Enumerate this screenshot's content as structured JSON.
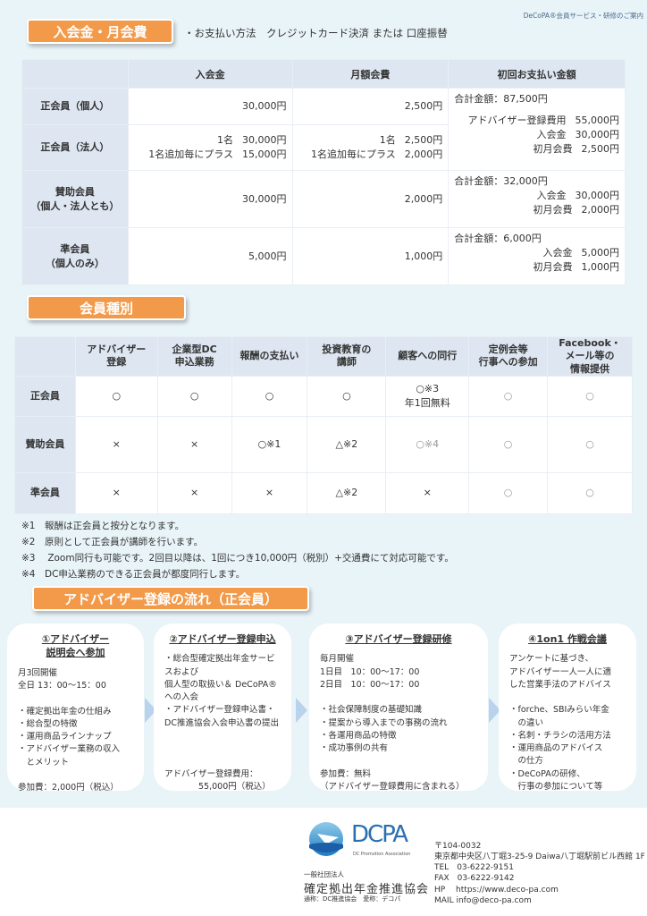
{
  "doc_tag": "DeCoPA®会員サービス・研修のご案内",
  "fees": {
    "title": "入会金・月会費",
    "payment": "・お支払い方法　クレジットカード決済 または 口座振替",
    "headers": [
      "",
      "入会金",
      "月額会費",
      "初回お支払い金額"
    ],
    "rows": [
      {
        "label": "正会員（個人）",
        "join": "30,000円",
        "monthly": "2,500円",
        "total": "合計金額：87,500円"
      },
      {
        "label": "正会員（法人）",
        "join": [
          [
            "1名",
            "30,000円"
          ],
          [
            "1名追加毎にプラス",
            "15,000円"
          ]
        ],
        "monthly": [
          [
            "1名",
            "2,500円"
          ],
          [
            "1名追加毎にプラス",
            "2,000円"
          ]
        ],
        "total_lines": [
          [
            "アドバイザー登録費用",
            "55,000円"
          ],
          [
            "入会金",
            "30,000円"
          ],
          [
            "初月会費",
            "2,500円"
          ]
        ]
      },
      {
        "label": "賛助会員\n（個人・法人とも）",
        "join": "30,000円",
        "monthly": "2,000円",
        "total": "合計金額：32,000円",
        "total_lines": [
          [
            "入会金",
            "30,000円"
          ],
          [
            "初月会費",
            "2,000円"
          ]
        ]
      },
      {
        "label": "準会員\n（個人のみ）",
        "join": "5,000円",
        "monthly": "1,000円",
        "total": "合計金額：6,000円",
        "total_lines": [
          [
            "入会金",
            "5,000円"
          ],
          [
            "初月会費",
            "1,000円"
          ]
        ]
      }
    ]
  },
  "types": {
    "title": "会員種別",
    "headers": [
      "",
      "アドバイザー\n登録",
      "企業型DC\n申込業務",
      "報酬の支払い",
      "投資教育の\n講師",
      "顧客への同行",
      "定例会等\n行事への参加",
      "Facebook・\nメール等の\n情報提供"
    ],
    "rows": [
      {
        "label": "正会員",
        "cells": [
          "○",
          "○",
          "○",
          "○",
          "○※3\n年1回無料",
          "○",
          "○"
        ]
      },
      {
        "label": "賛助会員",
        "cells": [
          "×",
          "×",
          "○※1",
          "△※2",
          "○※4",
          "○",
          "○"
        ]
      },
      {
        "label": "準会員",
        "cells": [
          "×",
          "×",
          "×",
          "△※2",
          "×",
          "○",
          "○"
        ]
      }
    ],
    "notes": [
      "※1　報酬は正会員と按分となります。",
      "※2　原則として正会員が講師を行います。",
      "※3　 Zoom同行も可能です。2回目以降は、1回につき10,000円（税別）+交通費にて対応可能です。",
      "※4　DC申込業務のできる正会員が都度同行します。"
    ]
  },
  "flow": {
    "title": "アドバイザー登録の流れ（正会員）",
    "steps": [
      {
        "title": "①アドバイザー\n説明会へ参加",
        "body": "月3回開催\n全日 13：00〜15：00\n\n・確定拠出年金の仕組み\n・総合型の特徴\n・運用商品ラインナップ\n・アドバイザー業務の収入\n　とメリット\n\n参加費：2,000円（税込）"
      },
      {
        "title": "②アドバイザー登録申込",
        "body": "・総合型確定拠出年金サービスおよび\n個人型の取扱い＆ DeCoPA®への入会\n・アドバイザー登録申込書・\nDC推進協会入会申込書の提出\n\n\n\nアドバイザー登録費用：\n　　　　55,000円（税込）"
      },
      {
        "title": "③アドバイザー登録研修",
        "body": "毎月開催\n1日目　10：00〜17：00\n2日目　10：00〜17：00\n\n・社会保障制度の基礎知識\n・提案から導入までの事務の流れ\n・各運用商品の特徴\n・成功事例の共有\n\n参加費：無料\n（アドバイザー登録費用に含まれる）"
      },
      {
        "title": "④1on1 作戦会議",
        "body": "アンケートに基づき、\nアドバイザー一人一人に適\nした営業手法のアドバイス\n\n・forche、SBIみらい年金\n　の違い\n・名刺・チラシの活用方法\n・運用商品のアドバイス\n　の仕方\n・DeCoPAの研修、\n　行事の参加について等"
      }
    ]
  },
  "footer": {
    "logo_text": "DCPA",
    "logo_sub": "DC Promotion Association",
    "org_type": "一般社団法人",
    "org_name": "確定拠出年金推進協会",
    "org_alias": "通称：DC推進協会　愛称：デコパ",
    "postal": "〒104-0032",
    "address": "東京都中央区八丁堀3-25-9 Daiwa八丁堀駅前ビル西館 1F",
    "tel": "TEL　03-6222-9151",
    "fax": "FAX　03-6222-9142",
    "hp": "HP　 https://www.deco-pa.com",
    "mail": "MAIL info@deco-pa.com"
  },
  "colors": {
    "accent": "#f39a4a",
    "header_bg": "#dde6f1",
    "page_bg": "#e9f4f8",
    "arrow": "#b9d3ec"
  }
}
